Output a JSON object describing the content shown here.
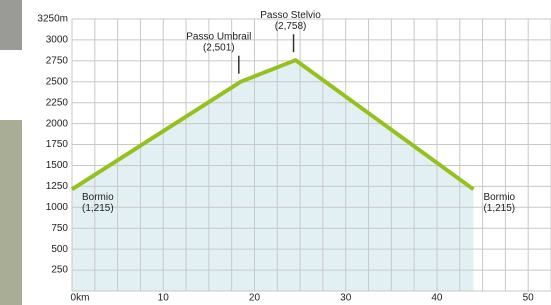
{
  "chart_data": {
    "type": "line",
    "x": [
      0,
      18.5,
      24.5,
      44
    ],
    "values": [
      1215,
      2501,
      2758,
      1215
    ],
    "point_labels": [
      "Bormio",
      "Passo Umbrail",
      "Passo Stelvio",
      "Bormio"
    ],
    "value_labels": [
      "(1,215)",
      "(2,501)",
      "(2,758)",
      "(1,215)"
    ],
    "color": "#95c11f",
    "area_color": "#e2f0f3",
    "xlim": [
      0,
      52.5
    ],
    "ylim": [
      0,
      3250
    ],
    "xticks": [
      {
        "value": 0,
        "label": "0km"
      },
      10,
      20,
      30,
      40,
      50
    ],
    "yticks": [
      250,
      500,
      750,
      1000,
      1250,
      1500,
      1750,
      2000,
      2250,
      2500,
      2750,
      3000,
      {
        "value": 3250,
        "label": "3250m"
      }
    ],
    "x_gridlines": [
      0,
      2.5,
      5,
      7.5,
      10,
      12.5,
      15,
      17.5,
      20,
      22.5,
      25,
      27.5,
      30,
      32.5,
      35,
      37.5,
      40,
      42.5,
      45,
      47.5,
      50,
      52.5
    ],
    "grid": true
  }
}
